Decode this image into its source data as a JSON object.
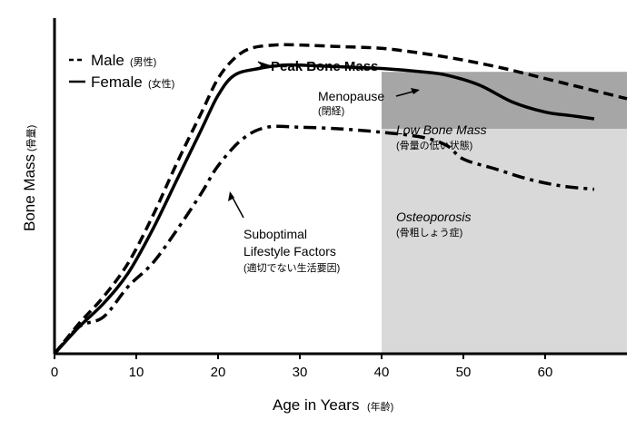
{
  "chart_data": {
    "type": "line",
    "xlabel": "Age in Years",
    "xlabel_jp": "(年齢)",
    "ylabel": "Bone Mass",
    "ylabel_jp": "(骨量)",
    "xlim": [
      0,
      70
    ],
    "ylim": [
      0,
      100
    ],
    "x_ticks": [
      0,
      10,
      20,
      30,
      40,
      50,
      60
    ],
    "grid": false,
    "legend_position": "top-left",
    "series": [
      {
        "name": "Male",
        "name_jp": "(男性)",
        "style": "dashed",
        "x": [
          0,
          3,
          6,
          9,
          12,
          15,
          18,
          20,
          22,
          24,
          27,
          30,
          35,
          40,
          45,
          50,
          55,
          60,
          65,
          70
        ],
        "y": [
          0,
          9,
          17,
          27,
          41,
          57,
          72,
          82,
          88,
          91,
          92,
          92,
          91.5,
          91,
          89.5,
          87.5,
          85,
          82,
          79,
          76
        ]
      },
      {
        "name": "Female",
        "name_jp": "(女性)",
        "style": "solid",
        "x": [
          0,
          3,
          6,
          9,
          12,
          15,
          18,
          20,
          22,
          25,
          28,
          30,
          35,
          40,
          45,
          48,
          52,
          56,
          60,
          63,
          66
        ],
        "y": [
          0,
          8,
          15,
          24,
          37,
          52,
          67,
          77,
          83,
          85,
          86,
          86,
          85.5,
          85,
          84,
          83,
          80,
          75,
          72,
          71,
          70
        ]
      },
      {
        "name": "Suboptimal Lifestyle Factors",
        "style": "dashdot",
        "x": [
          0,
          3,
          6,
          9,
          12,
          15,
          18,
          20,
          23,
          26,
          30,
          35,
          40,
          45,
          48,
          50,
          54,
          58,
          62,
          66
        ],
        "y": [
          0,
          8,
          11,
          20,
          27,
          37,
          48,
          56,
          64,
          67.5,
          67.5,
          67,
          66,
          64.5,
          62,
          58,
          55,
          52,
          50,
          49
        ]
      }
    ],
    "regions": [
      {
        "label": "Low Bone Mass",
        "label_jp": "(骨量の低い状態)",
        "x_from": 40,
        "x_to": 70,
        "y_from": 67,
        "y_to": 84,
        "color": "#a6a6a6"
      },
      {
        "label": "Osteoporosis",
        "label_jp": "(骨粗しょう症)",
        "x_from": 40,
        "x_to": 70,
        "y_from": 0,
        "y_to": 67,
        "color": "#d9d9d9"
      }
    ],
    "annotations": [
      {
        "text": "Peak Bone Mass",
        "x": 25,
        "y": 91.5
      },
      {
        "text": "Menopause",
        "text_jp": "(閉経)",
        "x": 47,
        "y": 84
      },
      {
        "text": "Suboptimal",
        "text2": "Lifestyle Factors",
        "text_jp": "(適切でない生活要因)",
        "x": 21.5,
        "y": 57
      }
    ]
  }
}
